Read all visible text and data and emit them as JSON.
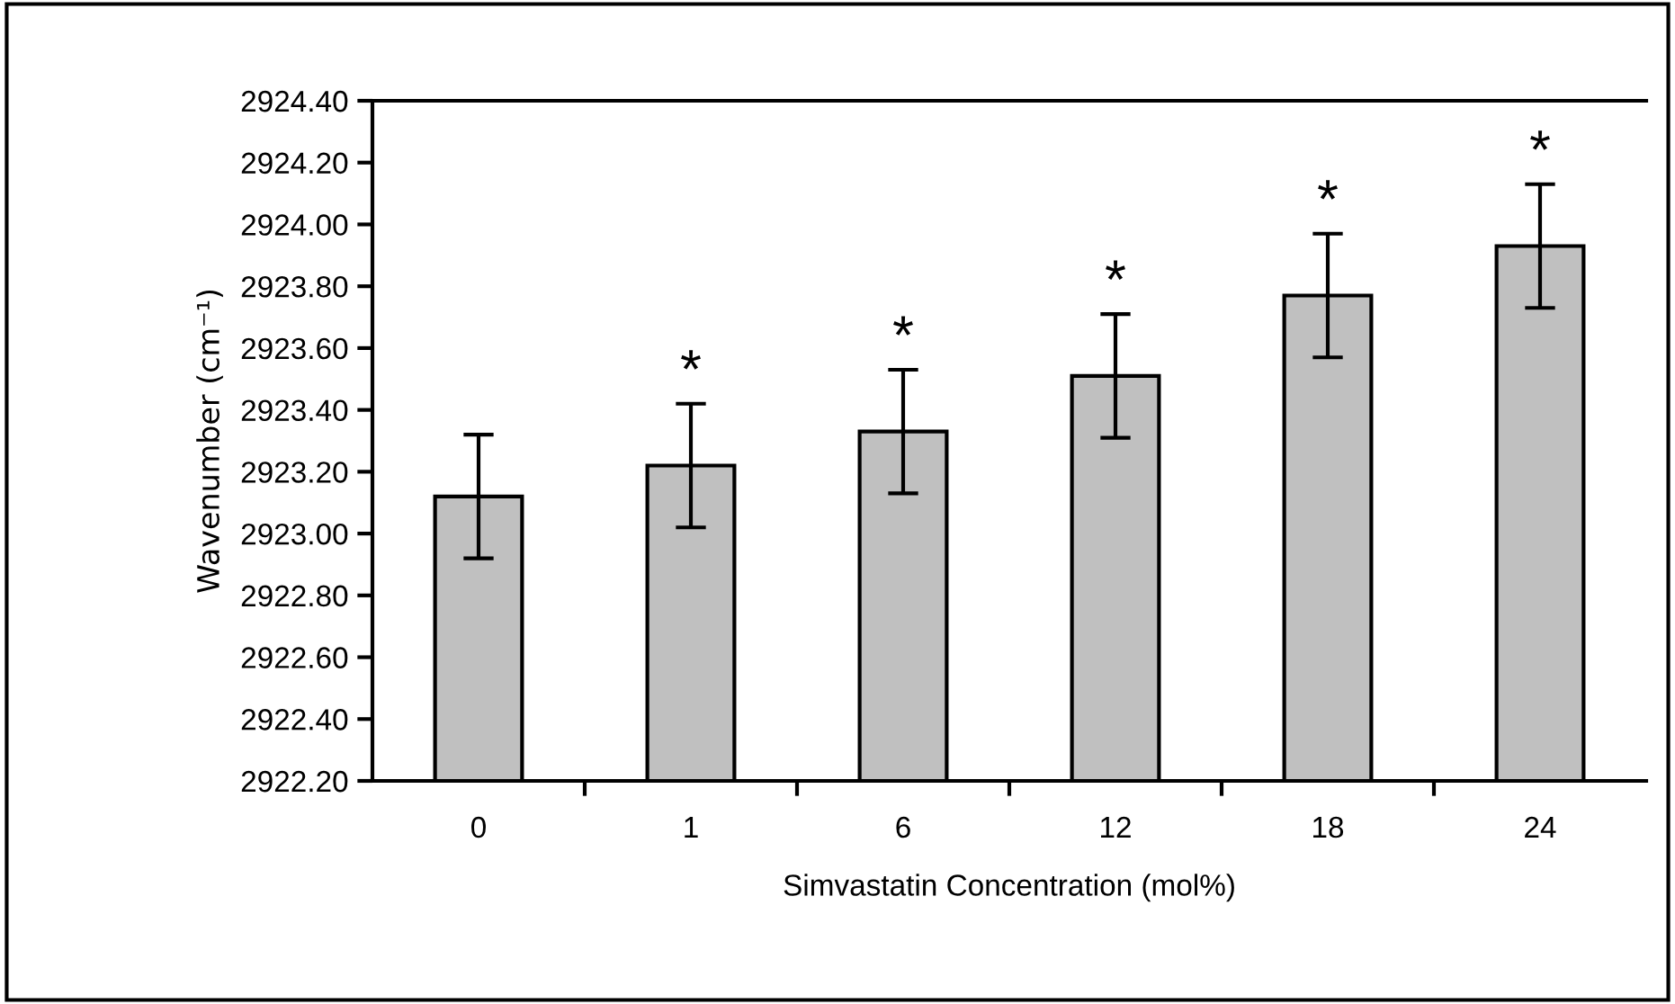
{
  "chart_data": {
    "type": "bar",
    "xlabel": "Simvastatin Concentration (mol%)",
    "ylabel": "Wavenumber (cm⁻¹)",
    "categories": [
      "0",
      "1",
      "6",
      "12",
      "18",
      "24"
    ],
    "values": [
      2923.12,
      2923.22,
      2923.33,
      2923.51,
      2923.77,
      2923.93
    ],
    "errors": [
      0.2,
      0.2,
      0.2,
      0.2,
      0.2,
      0.2
    ],
    "color": "#c0c0c0",
    "ylim": [
      2922.2,
      2924.4
    ],
    "yticks": [
      {
        "value": 2922.2,
        "label": "2922.20"
      },
      {
        "value": 2922.4,
        "label": "2922.40"
      },
      {
        "value": 2922.6,
        "label": "2922.60"
      },
      {
        "value": 2922.8,
        "label": "2922.80"
      },
      {
        "value": 2923.0,
        "label": "2923.00"
      },
      {
        "value": 2923.2,
        "label": "2923.20"
      },
      {
        "value": 2923.4,
        "label": "2923.40"
      },
      {
        "value": 2923.6,
        "label": "2923.60"
      },
      {
        "value": 2923.8,
        "label": "2923.80"
      },
      {
        "value": 2924.0,
        "label": "2924.00"
      },
      {
        "value": 2924.2,
        "label": "2924.20"
      },
      {
        "value": 2924.4,
        "label": "2924.40"
      }
    ],
    "annotations": [
      {
        "text": "*",
        "x": "1",
        "y": 2923.22
      },
      {
        "text": "*",
        "x": "6",
        "y": 2923.33
      },
      {
        "text": "*",
        "x": "12",
        "y": 2923.51
      },
      {
        "text": "*",
        "x": "18",
        "y": 2923.77
      },
      {
        "text": "*",
        "x": "24",
        "y": 2923.93
      }
    ],
    "grid": false,
    "legend": false
  }
}
